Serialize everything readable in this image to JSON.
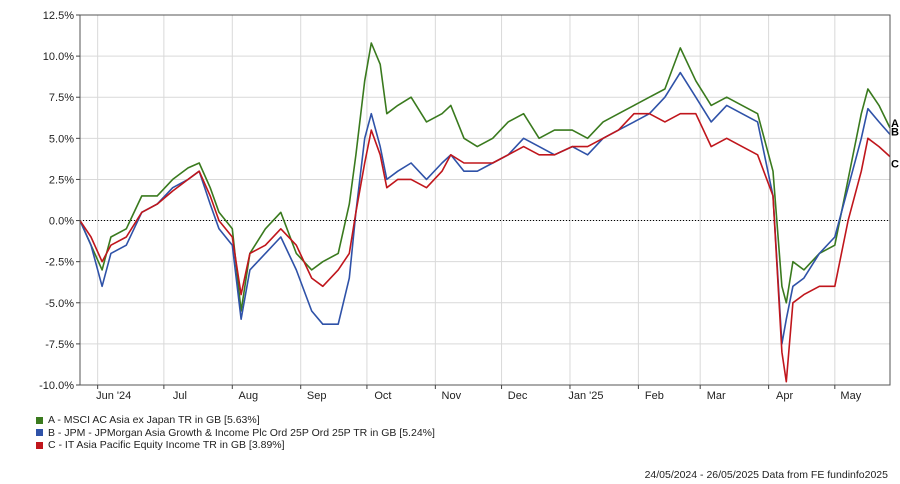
{
  "chart_data": {
    "type": "line",
    "ylim": [
      -10.0,
      12.5
    ],
    "y_ticks": [
      {
        "value": 12.5,
        "label": "12.5%"
      },
      {
        "value": 10.0,
        "label": "10.0%"
      },
      {
        "value": 7.5,
        "label": "7.5%"
      },
      {
        "value": 5.0,
        "label": "5.0%"
      },
      {
        "value": 2.5,
        "label": "2.5%"
      },
      {
        "value": 0.0,
        "label": "0.0%"
      },
      {
        "value": -2.5,
        "label": "-2.5%"
      },
      {
        "value": -5.0,
        "label": "-5.0%"
      },
      {
        "value": -7.5,
        "label": "-7.5%"
      },
      {
        "value": -10.0,
        "label": "-10.0%"
      }
    ],
    "x_range": [
      "2024-05-24",
      "2025-05-26"
    ],
    "x_ticks": [
      {
        "date": "2024-06-01",
        "label": "Jun '24"
      },
      {
        "date": "2024-07-01",
        "label": "Jul"
      },
      {
        "date": "2024-08-01",
        "label": "Aug"
      },
      {
        "date": "2024-09-01",
        "label": "Sep"
      },
      {
        "date": "2024-10-01",
        "label": "Oct"
      },
      {
        "date": "2024-11-01",
        "label": "Nov"
      },
      {
        "date": "2024-12-01",
        "label": "Dec"
      },
      {
        "date": "2025-01-01",
        "label": "Jan '25"
      },
      {
        "date": "2025-02-01",
        "label": "Feb"
      },
      {
        "date": "2025-03-01",
        "label": "Mar"
      },
      {
        "date": "2025-04-01",
        "label": "Apr"
      },
      {
        "date": "2025-05-01",
        "label": "May"
      }
    ],
    "grid": true,
    "zero_line": "dotted",
    "series": [
      {
        "name": "A - MSCI AC Asia ex Japan TR in GB [5.63%]",
        "end_label": "A",
        "color": "#3a7a1e",
        "points": [
          [
            "2024-05-24",
            0.0
          ],
          [
            "2024-05-29",
            -1.5
          ],
          [
            "2024-06-03",
            -3.0
          ],
          [
            "2024-06-07",
            -1.0
          ],
          [
            "2024-06-14",
            -0.5
          ],
          [
            "2024-06-21",
            1.5
          ],
          [
            "2024-06-28",
            1.5
          ],
          [
            "2024-07-05",
            2.5
          ],
          [
            "2024-07-12",
            3.2
          ],
          [
            "2024-07-17",
            3.5
          ],
          [
            "2024-07-22",
            2.0
          ],
          [
            "2024-07-26",
            0.5
          ],
          [
            "2024-08-01",
            -0.5
          ],
          [
            "2024-08-05",
            -5.5
          ],
          [
            "2024-08-09",
            -2.0
          ],
          [
            "2024-08-16",
            -0.5
          ],
          [
            "2024-08-23",
            0.5
          ],
          [
            "2024-08-30",
            -2.0
          ],
          [
            "2024-09-06",
            -3.0
          ],
          [
            "2024-09-11",
            -2.5
          ],
          [
            "2024-09-18",
            -2.0
          ],
          [
            "2024-09-23",
            1.0
          ],
          [
            "2024-09-26",
            4.0
          ],
          [
            "2024-09-30",
            8.5
          ],
          [
            "2024-10-03",
            10.8
          ],
          [
            "2024-10-07",
            9.5
          ],
          [
            "2024-10-10",
            6.5
          ],
          [
            "2024-10-15",
            7.0
          ],
          [
            "2024-10-21",
            7.5
          ],
          [
            "2024-10-28",
            6.0
          ],
          [
            "2024-11-04",
            6.5
          ],
          [
            "2024-11-08",
            7.0
          ],
          [
            "2024-11-14",
            5.0
          ],
          [
            "2024-11-20",
            4.5
          ],
          [
            "2024-11-27",
            5.0
          ],
          [
            "2024-12-04",
            6.0
          ],
          [
            "2024-12-11",
            6.5
          ],
          [
            "2024-12-18",
            5.0
          ],
          [
            "2024-12-25",
            5.5
          ],
          [
            "2025-01-02",
            5.5
          ],
          [
            "2025-01-09",
            5.0
          ],
          [
            "2025-01-16",
            6.0
          ],
          [
            "2025-01-23",
            6.5
          ],
          [
            "2025-01-30",
            7.0
          ],
          [
            "2025-02-06",
            7.5
          ],
          [
            "2025-02-13",
            8.0
          ],
          [
            "2025-02-20",
            10.5
          ],
          [
            "2025-02-27",
            8.5
          ],
          [
            "2025-03-06",
            7.0
          ],
          [
            "2025-03-13",
            7.5
          ],
          [
            "2025-03-20",
            7.0
          ],
          [
            "2025-03-27",
            6.5
          ],
          [
            "2025-04-03",
            3.0
          ],
          [
            "2025-04-07",
            -4.0
          ],
          [
            "2025-04-09",
            -5.0
          ],
          [
            "2025-04-12",
            -2.5
          ],
          [
            "2025-04-17",
            -3.0
          ],
          [
            "2025-04-24",
            -2.0
          ],
          [
            "2025-05-01",
            -1.5
          ],
          [
            "2025-05-07",
            2.5
          ],
          [
            "2025-05-13",
            6.5
          ],
          [
            "2025-05-16",
            8.0
          ],
          [
            "2025-05-21",
            7.0
          ],
          [
            "2025-05-26",
            5.63
          ]
        ]
      },
      {
        "name": "B - JPM - JPMorgan Asia Growth & Income Plc Ord 25P Ord 25P TR in GB [5.24%]",
        "end_label": "B",
        "color": "#2f52a8",
        "points": [
          [
            "2024-05-24",
            0.0
          ],
          [
            "2024-05-29",
            -1.5
          ],
          [
            "2024-06-03",
            -4.0
          ],
          [
            "2024-06-07",
            -2.0
          ],
          [
            "2024-06-14",
            -1.5
          ],
          [
            "2024-06-21",
            0.5
          ],
          [
            "2024-06-28",
            1.0
          ],
          [
            "2024-07-05",
            2.0
          ],
          [
            "2024-07-12",
            2.5
          ],
          [
            "2024-07-17",
            3.0
          ],
          [
            "2024-07-22",
            1.0
          ],
          [
            "2024-07-26",
            -0.5
          ],
          [
            "2024-08-01",
            -1.5
          ],
          [
            "2024-08-05",
            -6.0
          ],
          [
            "2024-08-09",
            -3.0
          ],
          [
            "2024-08-16",
            -2.0
          ],
          [
            "2024-08-23",
            -1.0
          ],
          [
            "2024-08-30",
            -3.0
          ],
          [
            "2024-09-06",
            -5.5
          ],
          [
            "2024-09-11",
            -6.3
          ],
          [
            "2024-09-18",
            -6.3
          ],
          [
            "2024-09-23",
            -3.5
          ],
          [
            "2024-09-26",
            0.5
          ],
          [
            "2024-09-30",
            5.0
          ],
          [
            "2024-10-03",
            6.5
          ],
          [
            "2024-10-07",
            4.5
          ],
          [
            "2024-10-10",
            2.5
          ],
          [
            "2024-10-15",
            3.0
          ],
          [
            "2024-10-21",
            3.5
          ],
          [
            "2024-10-28",
            2.5
          ],
          [
            "2024-11-04",
            3.5
          ],
          [
            "2024-11-08",
            4.0
          ],
          [
            "2024-11-14",
            3.0
          ],
          [
            "2024-11-20",
            3.0
          ],
          [
            "2024-11-27",
            3.5
          ],
          [
            "2024-12-04",
            4.0
          ],
          [
            "2024-12-11",
            5.0
          ],
          [
            "2024-12-18",
            4.5
          ],
          [
            "2024-12-25",
            4.0
          ],
          [
            "2025-01-02",
            4.5
          ],
          [
            "2025-01-09",
            4.0
          ],
          [
            "2025-01-16",
            5.0
          ],
          [
            "2025-01-23",
            5.5
          ],
          [
            "2025-01-30",
            6.0
          ],
          [
            "2025-02-06",
            6.5
          ],
          [
            "2025-02-13",
            7.5
          ],
          [
            "2025-02-20",
            9.0
          ],
          [
            "2025-02-27",
            7.5
          ],
          [
            "2025-03-06",
            6.0
          ],
          [
            "2025-03-13",
            7.0
          ],
          [
            "2025-03-20",
            6.5
          ],
          [
            "2025-03-27",
            6.0
          ],
          [
            "2025-04-03",
            1.5
          ],
          [
            "2025-04-07",
            -7.5
          ],
          [
            "2025-04-09",
            -6.0
          ],
          [
            "2025-04-12",
            -4.0
          ],
          [
            "2025-04-17",
            -3.5
          ],
          [
            "2025-04-24",
            -2.0
          ],
          [
            "2025-05-01",
            -1.0
          ],
          [
            "2025-05-07",
            2.0
          ],
          [
            "2025-05-13",
            5.0
          ],
          [
            "2025-05-16",
            6.8
          ],
          [
            "2025-05-21",
            6.0
          ],
          [
            "2025-05-26",
            5.24
          ]
        ]
      },
      {
        "name": "C - IT Asia Pacific Equity Income TR in GB [3.89%]",
        "end_label": "C",
        "color": "#c0161c",
        "points": [
          [
            "2024-05-24",
            0.0
          ],
          [
            "2024-05-29",
            -1.0
          ],
          [
            "2024-06-03",
            -2.5
          ],
          [
            "2024-06-07",
            -1.5
          ],
          [
            "2024-06-14",
            -1.0
          ],
          [
            "2024-06-21",
            0.5
          ],
          [
            "2024-06-28",
            1.0
          ],
          [
            "2024-07-05",
            1.8
          ],
          [
            "2024-07-12",
            2.5
          ],
          [
            "2024-07-17",
            3.0
          ],
          [
            "2024-07-22",
            1.5
          ],
          [
            "2024-07-26",
            0.0
          ],
          [
            "2024-08-01",
            -1.0
          ],
          [
            "2024-08-05",
            -4.5
          ],
          [
            "2024-08-09",
            -2.0
          ],
          [
            "2024-08-16",
            -1.5
          ],
          [
            "2024-08-23",
            -0.5
          ],
          [
            "2024-08-30",
            -1.5
          ],
          [
            "2024-09-06",
            -3.5
          ],
          [
            "2024-09-11",
            -4.0
          ],
          [
            "2024-09-18",
            -3.0
          ],
          [
            "2024-09-23",
            -2.0
          ],
          [
            "2024-09-26",
            0.5
          ],
          [
            "2024-09-30",
            3.5
          ],
          [
            "2024-10-03",
            5.5
          ],
          [
            "2024-10-07",
            4.0
          ],
          [
            "2024-10-10",
            2.0
          ],
          [
            "2024-10-15",
            2.5
          ],
          [
            "2024-10-21",
            2.5
          ],
          [
            "2024-10-28",
            2.0
          ],
          [
            "2024-11-04",
            3.0
          ],
          [
            "2024-11-08",
            4.0
          ],
          [
            "2024-11-14",
            3.5
          ],
          [
            "2024-11-20",
            3.5
          ],
          [
            "2024-11-27",
            3.5
          ],
          [
            "2024-12-04",
            4.0
          ],
          [
            "2024-12-11",
            4.5
          ],
          [
            "2024-12-18",
            4.0
          ],
          [
            "2024-12-25",
            4.0
          ],
          [
            "2025-01-02",
            4.5
          ],
          [
            "2025-01-09",
            4.5
          ],
          [
            "2025-01-16",
            5.0
          ],
          [
            "2025-01-23",
            5.5
          ],
          [
            "2025-01-30",
            6.5
          ],
          [
            "2025-02-06",
            6.5
          ],
          [
            "2025-02-13",
            6.0
          ],
          [
            "2025-02-20",
            6.5
          ],
          [
            "2025-02-27",
            6.5
          ],
          [
            "2025-03-06",
            4.5
          ],
          [
            "2025-03-13",
            5.0
          ],
          [
            "2025-03-20",
            4.5
          ],
          [
            "2025-03-27",
            4.0
          ],
          [
            "2025-04-03",
            1.5
          ],
          [
            "2025-04-07",
            -8.0
          ],
          [
            "2025-04-09",
            -9.8
          ],
          [
            "2025-04-12",
            -5.0
          ],
          [
            "2025-04-17",
            -4.5
          ],
          [
            "2025-04-24",
            -4.0
          ],
          [
            "2025-05-01",
            -4.0
          ],
          [
            "2025-05-07",
            0.0
          ],
          [
            "2025-05-13",
            3.0
          ],
          [
            "2025-05-16",
            5.0
          ],
          [
            "2025-05-21",
            4.5
          ],
          [
            "2025-05-26",
            3.89
          ]
        ]
      }
    ]
  },
  "footer": {
    "text": "24/05/2024 - 26/05/2025 Data from FE fundinfo2025"
  }
}
